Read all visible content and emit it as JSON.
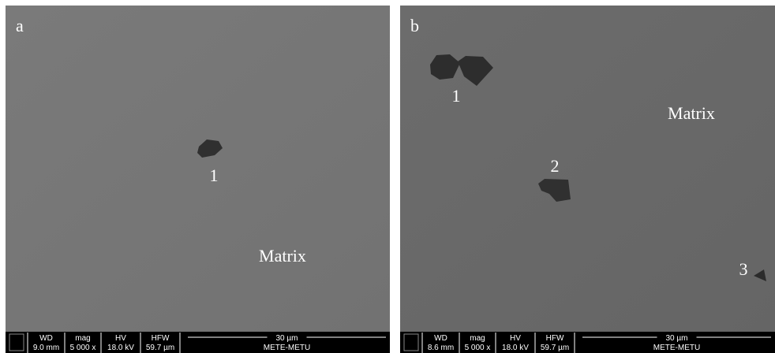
{
  "panels": [
    {
      "label": "a",
      "annotations": [
        {
          "text": "1"
        },
        {
          "text": "Matrix"
        }
      ],
      "info": {
        "headers": [
          "WD",
          "mag",
          "HV",
          "HFW"
        ],
        "values": [
          "9.0 mm",
          "5 000 x",
          "18.0 kV",
          "59.7 µm"
        ],
        "scale": "30 µm",
        "institution": "METE-METU"
      }
    },
    {
      "label": "b",
      "annotations": [
        {
          "text": "1"
        },
        {
          "text": "Matrix"
        },
        {
          "text": "2"
        },
        {
          "text": "3"
        }
      ],
      "info": {
        "headers": [
          "WD",
          "mag",
          "HV",
          "HFW"
        ],
        "values": [
          "8.6 mm",
          "5 000 x",
          "18.0 kV",
          "59.7 µm"
        ],
        "scale": "30 µm",
        "institution": "METE-METU"
      }
    }
  ]
}
